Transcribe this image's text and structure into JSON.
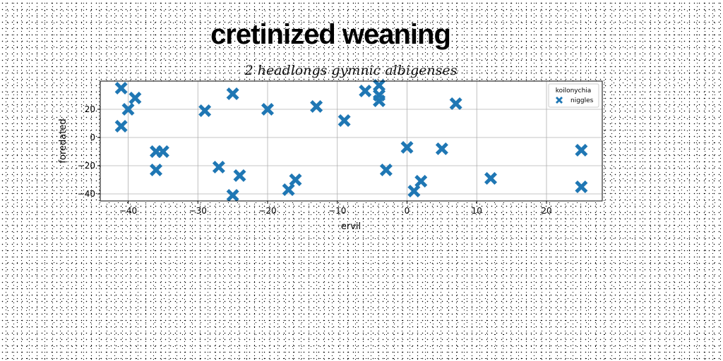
{
  "chart_data": {
    "type": "scatter",
    "title": "cretinized weaning",
    "subtitle": "2 headlongs gymnic albigenses",
    "xlabel": "ervil",
    "ylabel": "foredated",
    "xlim": [
      -44,
      28
    ],
    "ylim": [
      -45,
      40
    ],
    "xticks": [
      -40,
      -30,
      -20,
      -10,
      0,
      10,
      20
    ],
    "yticks": [
      -40,
      -20,
      0,
      20
    ],
    "grid": true,
    "legend": {
      "title": "koilonychia",
      "placement": "top-right"
    },
    "series": [
      {
        "name": "niggles",
        "color": "#1f77b4",
        "marker": "x-filled",
        "points": [
          {
            "x": -41,
            "y": 35
          },
          {
            "x": -41,
            "y": 8
          },
          {
            "x": -40,
            "y": 20
          },
          {
            "x": -39,
            "y": 28
          },
          {
            "x": -36,
            "y": -10
          },
          {
            "x": -36,
            "y": -23
          },
          {
            "x": -35,
            "y": -10
          },
          {
            "x": -29,
            "y": 19
          },
          {
            "x": -27,
            "y": -21
          },
          {
            "x": -25,
            "y": 31
          },
          {
            "x": -25,
            "y": -41
          },
          {
            "x": -24,
            "y": -27
          },
          {
            "x": -20,
            "y": 20
          },
          {
            "x": -17,
            "y": -37
          },
          {
            "x": -16,
            "y": -30
          },
          {
            "x": -13,
            "y": 22
          },
          {
            "x": -9,
            "y": 12
          },
          {
            "x": -6,
            "y": 33
          },
          {
            "x": -4,
            "y": 37
          },
          {
            "x": -4,
            "y": 30
          },
          {
            "x": -4,
            "y": 26
          },
          {
            "x": -3,
            "y": -23
          },
          {
            "x": 0,
            "y": -7
          },
          {
            "x": 1,
            "y": -38
          },
          {
            "x": 2,
            "y": -31
          },
          {
            "x": 5,
            "y": -8
          },
          {
            "x": 7,
            "y": 24
          },
          {
            "x": 12,
            "y": -29
          },
          {
            "x": 25,
            "y": -9
          },
          {
            "x": 25,
            "y": -35
          }
        ]
      }
    ]
  }
}
